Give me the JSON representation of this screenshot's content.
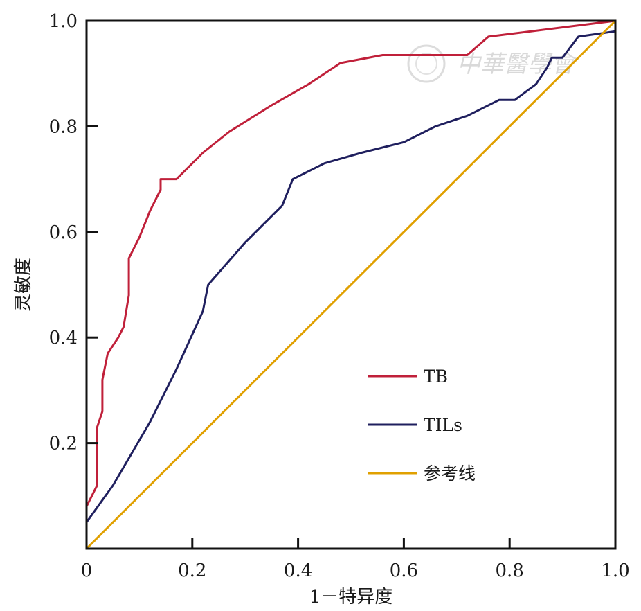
{
  "chart_data": {
    "type": "line",
    "title": "",
    "xlabel": "1－特异度",
    "ylabel": "灵敏度",
    "xlim": [
      0,
      1
    ],
    "ylim": [
      0,
      1
    ],
    "x_tick_labels": [
      "0",
      "0.2",
      "0.4",
      "0.6",
      "0.8",
      "1.0"
    ],
    "y_tick_labels": [
      "0.2",
      "0.4",
      "0.6",
      "0.8",
      "1.0"
    ],
    "grid": false,
    "legend_position": "lower-right",
    "series": [
      {
        "name": "TB",
        "color": "#c0203a",
        "points": [
          [
            0,
            0
          ],
          [
            0,
            0.08
          ],
          [
            0.02,
            0.12
          ],
          [
            0.02,
            0.23
          ],
          [
            0.03,
            0.26
          ],
          [
            0.03,
            0.32
          ],
          [
            0.04,
            0.37
          ],
          [
            0.06,
            0.4
          ],
          [
            0.07,
            0.42
          ],
          [
            0.08,
            0.48
          ],
          [
            0.08,
            0.55
          ],
          [
            0.1,
            0.59
          ],
          [
            0.12,
            0.64
          ],
          [
            0.14,
            0.68
          ],
          [
            0.14,
            0.7
          ],
          [
            0.17,
            0.7
          ],
          [
            0.22,
            0.75
          ],
          [
            0.27,
            0.79
          ],
          [
            0.35,
            0.84
          ],
          [
            0.42,
            0.88
          ],
          [
            0.48,
            0.92
          ],
          [
            0.56,
            0.935
          ],
          [
            0.72,
            0.935
          ],
          [
            0.76,
            0.97
          ],
          [
            1.0,
            1.0
          ]
        ]
      },
      {
        "name": "TILs",
        "color": "#1f1f5e",
        "points": [
          [
            0,
            0
          ],
          [
            0,
            0.05
          ],
          [
            0.05,
            0.12
          ],
          [
            0.12,
            0.24
          ],
          [
            0.17,
            0.34
          ],
          [
            0.22,
            0.45
          ],
          [
            0.23,
            0.5
          ],
          [
            0.3,
            0.58
          ],
          [
            0.37,
            0.65
          ],
          [
            0.39,
            0.7
          ],
          [
            0.45,
            0.73
          ],
          [
            0.52,
            0.75
          ],
          [
            0.6,
            0.77
          ],
          [
            0.66,
            0.8
          ],
          [
            0.72,
            0.82
          ],
          [
            0.78,
            0.85
          ],
          [
            0.81,
            0.85
          ],
          [
            0.85,
            0.88
          ],
          [
            0.87,
            0.91
          ],
          [
            0.88,
            0.93
          ],
          [
            0.9,
            0.93
          ],
          [
            0.93,
            0.97
          ],
          [
            1.0,
            0.98
          ]
        ]
      },
      {
        "name": "参考线",
        "color": "#e0a000",
        "points": [
          [
            0,
            0
          ],
          [
            1,
            1
          ]
        ]
      }
    ]
  },
  "watermark": {
    "text": "中華醫學會"
  },
  "colors": {
    "axes": "#111111",
    "watermark": "#d9d9d9"
  }
}
